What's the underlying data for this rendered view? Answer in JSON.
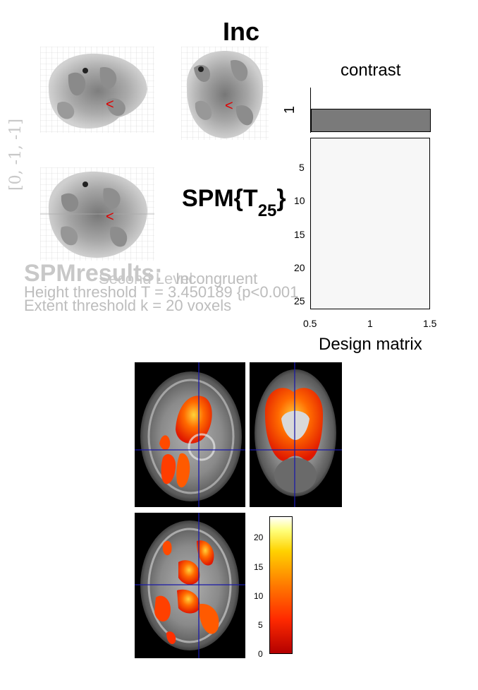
{
  "header": {
    "title": "Inc"
  },
  "stat_label": {
    "main": "SPM{T",
    "subscript": "25",
    "close": "}"
  },
  "coords_label": "[0, -1, -1]",
  "results": {
    "watermark": "SPMresults:",
    "line1": "Incongruent",
    "line1_prefix": "Second Level",
    "line2": "Height threshold T = 3.450189  {p<0.001",
    "line3": "Extent threshold k = 20 voxels"
  },
  "contrast_panel": {
    "title": "contrast",
    "y_tick": "1",
    "color": "#7a7a7a"
  },
  "design_matrix": {
    "xlabel": "Design matrix",
    "x_ticks": [
      "0.5",
      "1",
      "1.5"
    ],
    "y_ticks": [
      "5",
      "10",
      "15",
      "20",
      "25"
    ]
  },
  "mip": {
    "marker": "<",
    "marker_color": "#e00000"
  },
  "colorbar": {
    "ticks": [
      "20",
      "15",
      "10",
      "5",
      "0"
    ],
    "values": [
      20,
      15,
      10,
      5,
      0
    ],
    "max": 23,
    "min": 0
  },
  "crosshair_color": "#1a1aa8"
}
